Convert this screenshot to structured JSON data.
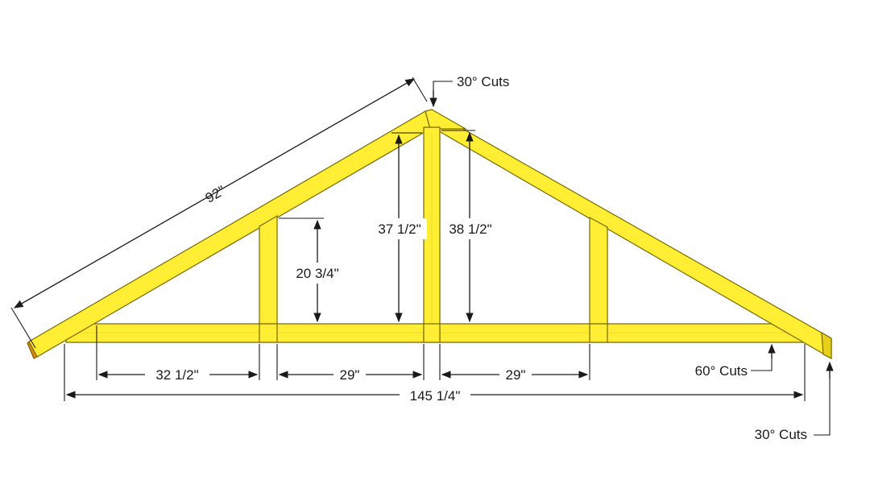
{
  "labels": {
    "top_rafter_length": "92\"",
    "peak_cut": "30° Cuts",
    "center_post_left": "37 1/2\"",
    "center_post_right": "38 1/2\"",
    "side_post": "20 3/4\"",
    "left_bay": "32 1/2\"",
    "mid_left_bay": "29\"",
    "mid_right_bay": "29\"",
    "total_span": "145 1/4\"",
    "bottom_cut": "60° Cuts",
    "end_cut": "30° Cuts"
  },
  "colors": {
    "wood": "#ffee33",
    "wood_edge": "#7a6a00",
    "line": "#1a1a1a"
  }
}
